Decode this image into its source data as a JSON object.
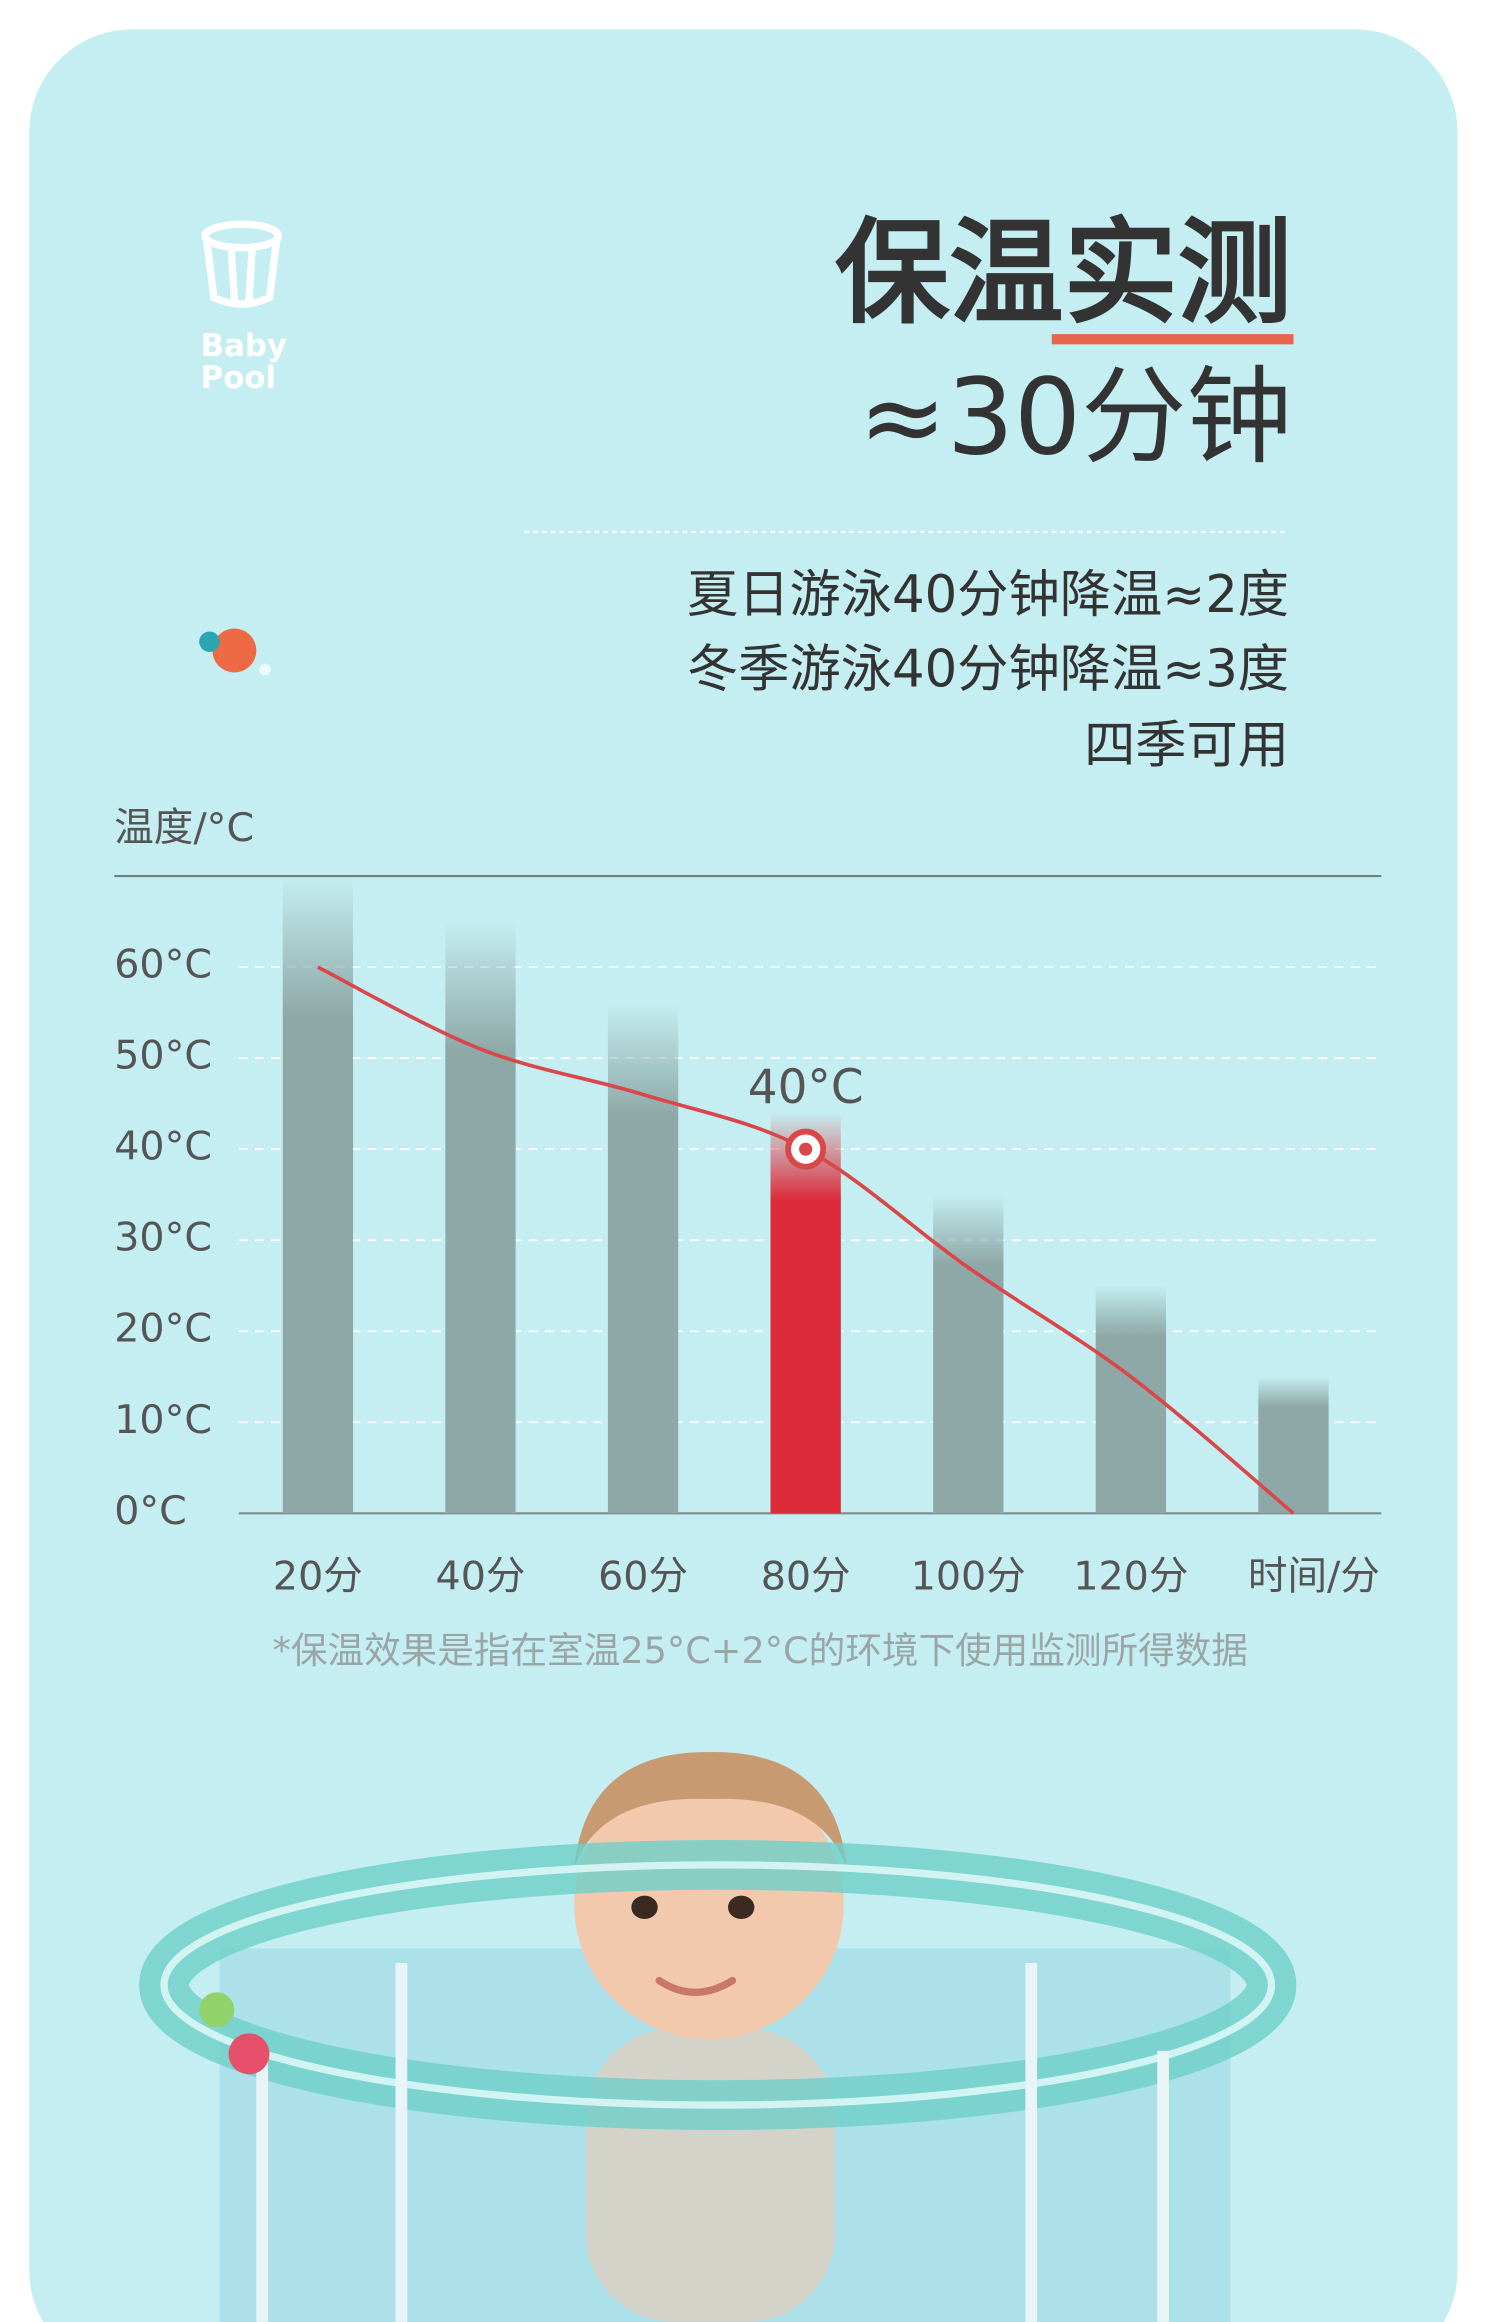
{
  "logo": [
    "Baby",
    "Pool"
  ],
  "header": {
    "title": "保温实测",
    "subtitle": "≈30分钟"
  },
  "notes": [
    "夏日游泳40分钟降温≈2度",
    "冬季游泳40分钟降温≈3度",
    "四季可用"
  ],
  "chart_data": {
    "type": "bar",
    "y_label": "温度/°C",
    "x_label": "时间/分",
    "footnote": "*保温效果是指在室温25°C+2°C的环境下使用监测所得数据",
    "categories": [
      "20分",
      "40分",
      "60分",
      "80分",
      "100分",
      "120分",
      null
    ],
    "ylim": [
      0,
      70
    ],
    "yticks": [
      {
        "value": 0,
        "label": "0°C"
      },
      {
        "value": 10,
        "label": "10°C"
      },
      {
        "value": 20,
        "label": "20°C"
      },
      {
        "value": 30,
        "label": "30°C"
      },
      {
        "value": 40,
        "label": "40°C"
      },
      {
        "value": 50,
        "label": "50°C"
      },
      {
        "value": 60,
        "label": "60°C"
      }
    ],
    "grid": true,
    "series": [
      {
        "type": "bar",
        "colors": [
          "#8ea8a7",
          "#8ea8a7",
          "#8ea8a7",
          "#dc2a38",
          "#8ea8a7",
          "#8ea8a7",
          "#8ea8a7"
        ],
        "values": [
          70,
          65,
          56,
          44,
          35,
          25,
          15
        ]
      },
      {
        "type": "line",
        "color": "#d9474b",
        "values": [
          60,
          51,
          46,
          40,
          27,
          15,
          0
        ],
        "value_labels": [
          null,
          null,
          null,
          "40°C",
          null,
          null,
          null
        ]
      }
    ]
  }
}
